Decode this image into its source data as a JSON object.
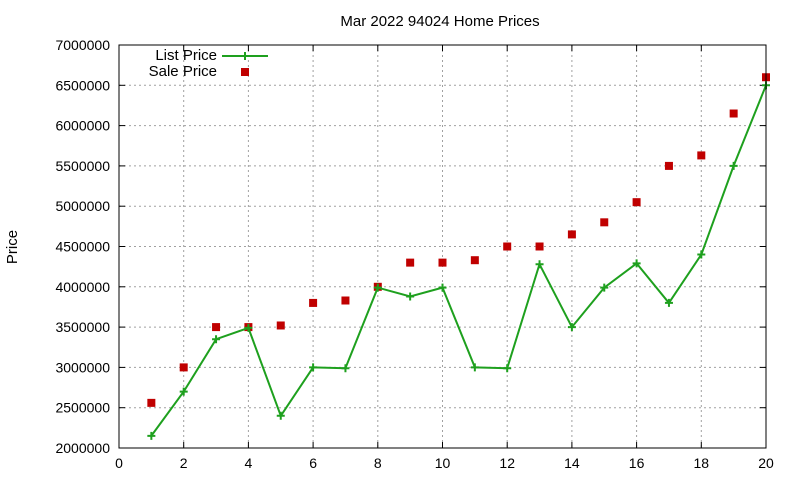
{
  "chart_data": {
    "type": "scatter",
    "title": "Mar 2022 94024 Home Prices",
    "xlabel": "",
    "ylabel": "Price",
    "xlim": [
      0,
      20
    ],
    "ylim": [
      2000000,
      7000000
    ],
    "xticks": [
      0,
      2,
      4,
      6,
      8,
      10,
      12,
      14,
      16,
      18,
      20
    ],
    "yticks": [
      2000000,
      2500000,
      3000000,
      3500000,
      4000000,
      4500000,
      5000000,
      5500000,
      6000000,
      6500000,
      7000000
    ],
    "grid": true,
    "legend_position": "top-left",
    "series": [
      {
        "name": "List Price",
        "style": "line-with-plus-markers",
        "color": "#1ea01e",
        "x": [
          1,
          2,
          3,
          4,
          5,
          6,
          7,
          8,
          9,
          10,
          11,
          12,
          13,
          14,
          15,
          16,
          17,
          18,
          19,
          20
        ],
        "values": [
          2150000,
          2700000,
          3350000,
          3490000,
          2400000,
          3000000,
          2990000,
          3990000,
          3880000,
          3990000,
          3000000,
          2990000,
          4280000,
          3500000,
          3990000,
          4290000,
          3800000,
          4400000,
          5500000,
          6500000
        ]
      },
      {
        "name": "Sale Price",
        "style": "square-markers",
        "color": "#c00000",
        "x": [
          1,
          2,
          3,
          4,
          5,
          6,
          7,
          8,
          9,
          10,
          11,
          12,
          13,
          14,
          15,
          16,
          17,
          18,
          19,
          20
        ],
        "values": [
          2560000,
          3000000,
          3500000,
          3500000,
          3520000,
          3800000,
          3830000,
          4000000,
          4300000,
          4300000,
          4330000,
          4500000,
          4500000,
          4650000,
          4800000,
          5050000,
          5500000,
          5630000,
          6150000,
          6600000
        ]
      }
    ]
  }
}
